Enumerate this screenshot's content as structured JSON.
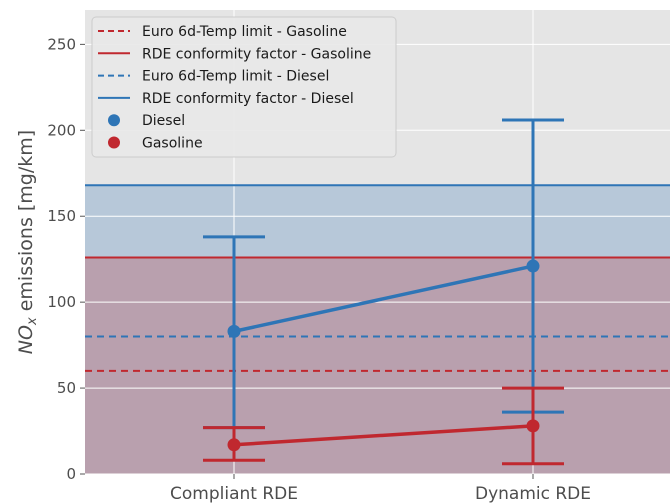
{
  "chart_data": {
    "type": "pointplot",
    "xlabel": "",
    "ylabel_main": "NO",
    "ylabel_sub": "x",
    "ylabel_rest": " emissions [mg/km]",
    "categories": [
      "Compliant RDE",
      "Dynamic RDE"
    ],
    "ylim": [
      0,
      270
    ],
    "yticks": [
      0,
      50,
      100,
      150,
      200,
      250
    ],
    "grid": true,
    "legend_position": "top-left",
    "series": [
      {
        "name": "Diesel",
        "color": "#2e75b6",
        "values": [
          83,
          121
        ],
        "error_low": [
          27,
          36
        ],
        "error_high": [
          138,
          206
        ]
      },
      {
        "name": "Gasoline",
        "color": "#c0282f",
        "values": [
          17,
          28
        ],
        "error_low": [
          8,
          6
        ],
        "error_high": [
          27,
          50
        ]
      }
    ],
    "reference_lines": [
      {
        "name": "Euro 6d-Temp limit - Gasoline",
        "value": 60,
        "style": "dashed",
        "color": "#c0282f"
      },
      {
        "name": "RDE conformity factor - Gasoline",
        "value": 126,
        "style": "solid",
        "color": "#c0282f",
        "band": true
      },
      {
        "name": "Euro 6d-Temp limit - Diesel",
        "value": 80,
        "style": "dashed",
        "color": "#2e75b6"
      },
      {
        "name": "RDE conformity factor - Diesel",
        "value": 168,
        "style": "solid",
        "color": "#2e75b6",
        "band": true
      }
    ],
    "legend": [
      {
        "label": "Euro 6d-Temp limit - Gasoline",
        "kind": "dashed",
        "color": "#c0282f"
      },
      {
        "label": "RDE conformity factor - Gasoline",
        "kind": "solid",
        "color": "#c0282f"
      },
      {
        "label": "Euro 6d-Temp limit - Diesel",
        "kind": "dashed",
        "color": "#2e75b6"
      },
      {
        "label": "RDE conformity factor - Diesel",
        "kind": "solid",
        "color": "#2e75b6"
      },
      {
        "label": "Diesel",
        "kind": "marker",
        "color": "#2e75b6"
      },
      {
        "label": "Gasoline",
        "kind": "marker",
        "color": "#c0282f"
      }
    ]
  }
}
